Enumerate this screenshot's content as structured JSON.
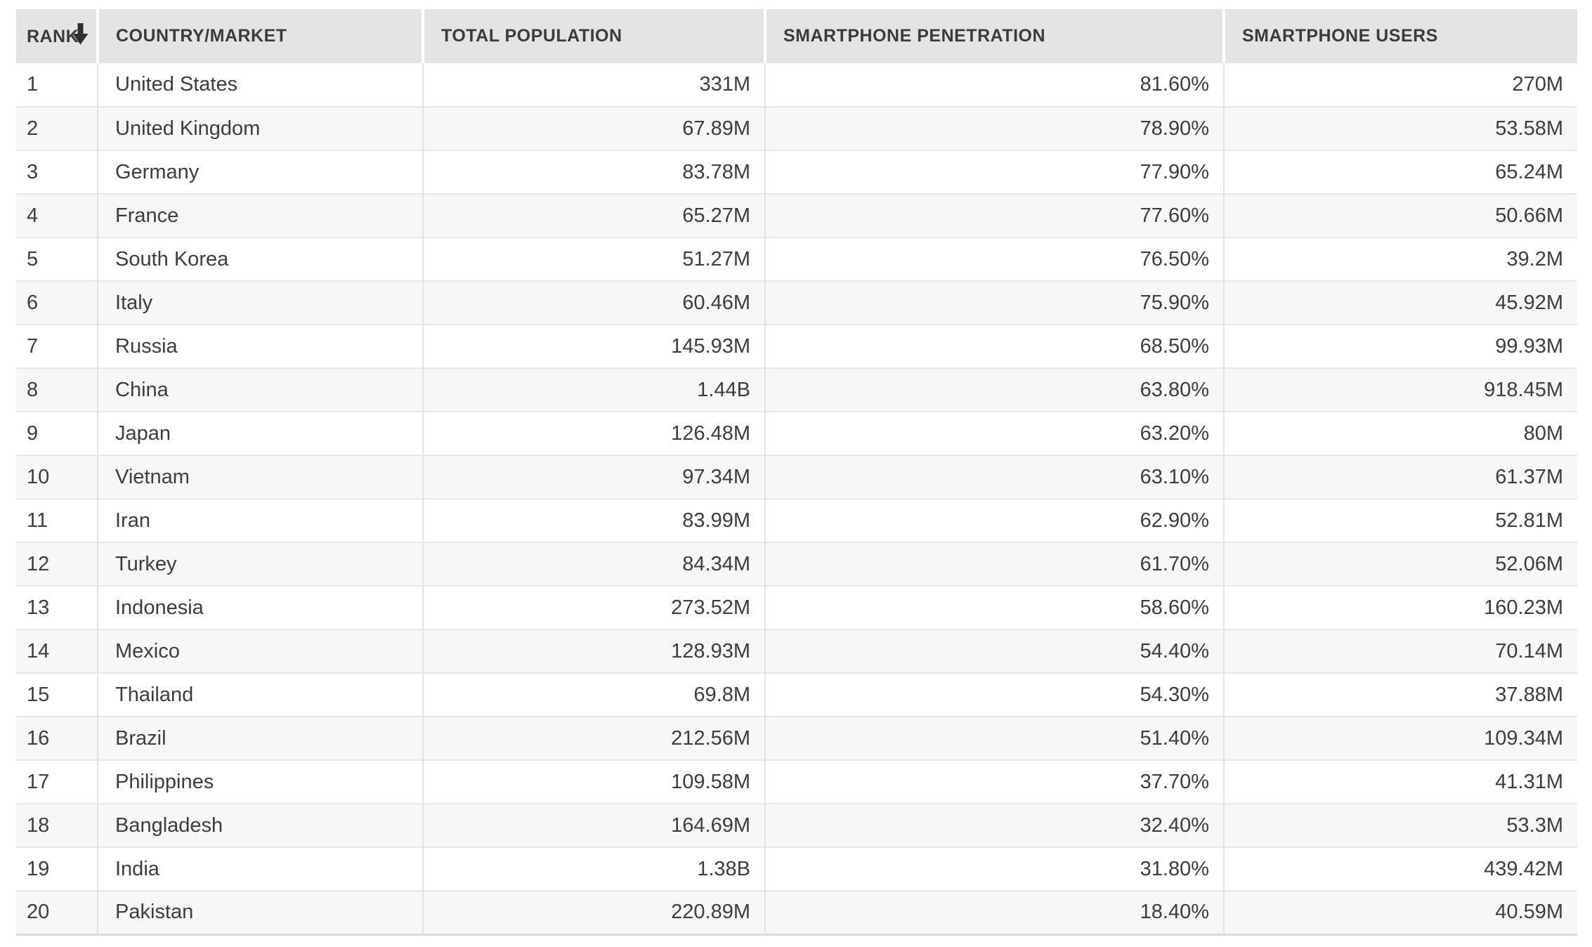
{
  "table": {
    "columns": [
      {
        "key": "rank",
        "label": "RANK",
        "align": "left"
      },
      {
        "key": "country",
        "label": "COUNTRY/MARKET",
        "align": "left"
      },
      {
        "key": "population",
        "label": "TOTAL POPULATION",
        "align": "right"
      },
      {
        "key": "penetration",
        "label": "SMARTPHONE PENETRATION",
        "align": "right"
      },
      {
        "key": "users",
        "label": "SMARTPHONE USERS",
        "align": "right"
      }
    ],
    "sort": {
      "column": "RANK",
      "direction": "desc",
      "icon": "sort-down-arrow-icon"
    }
  },
  "colors": {
    "header_bg": "#e4e4e4",
    "header_text": "#3b3b3b",
    "body_text": "#3d3d3d",
    "row_alt_bg": "#f7f7f7",
    "row_line": "#e7e7e7",
    "cell_line": "#e2e2e2"
  },
  "chart_data": {
    "type": "table",
    "title": "",
    "columns": [
      "RANK",
      "COUNTRY/MARKET",
      "TOTAL POPULATION",
      "SMARTPHONE PENETRATION",
      "SMARTPHONE USERS"
    ],
    "rows": [
      [
        "1",
        "United States",
        "331M",
        "81.60%",
        "270M"
      ],
      [
        "2",
        "United Kingdom",
        "67.89M",
        "78.90%",
        "53.58M"
      ],
      [
        "3",
        "Germany",
        "83.78M",
        "77.90%",
        "65.24M"
      ],
      [
        "4",
        "France",
        "65.27M",
        "77.60%",
        "50.66M"
      ],
      [
        "5",
        "South Korea",
        "51.27M",
        "76.50%",
        "39.2M"
      ],
      [
        "6",
        "Italy",
        "60.46M",
        "75.90%",
        "45.92M"
      ],
      [
        "7",
        "Russia",
        "145.93M",
        "68.50%",
        "99.93M"
      ],
      [
        "8",
        "China",
        "1.44B",
        "63.80%",
        "918.45M"
      ],
      [
        "9",
        "Japan",
        "126.48M",
        "63.20%",
        "80M"
      ],
      [
        "10",
        "Vietnam",
        "97.34M",
        "63.10%",
        "61.37M"
      ],
      [
        "11",
        "Iran",
        "83.99M",
        "62.90%",
        "52.81M"
      ],
      [
        "12",
        "Turkey",
        "84.34M",
        "61.70%",
        "52.06M"
      ],
      [
        "13",
        "Indonesia",
        "273.52M",
        "58.60%",
        "160.23M"
      ],
      [
        "14",
        "Mexico",
        "128.93M",
        "54.40%",
        "70.14M"
      ],
      [
        "15",
        "Thailand",
        "69.8M",
        "54.30%",
        "37.88M"
      ],
      [
        "16",
        "Brazil",
        "212.56M",
        "51.40%",
        "109.34M"
      ],
      [
        "17",
        "Philippines",
        "109.58M",
        "37.70%",
        "41.31M"
      ],
      [
        "18",
        "Bangladesh",
        "164.69M",
        "32.40%",
        "53.3M"
      ],
      [
        "19",
        "India",
        "1.38B",
        "31.80%",
        "439.42M"
      ],
      [
        "20",
        "Pakistan",
        "220.89M",
        "18.40%",
        "40.59M"
      ]
    ]
  }
}
